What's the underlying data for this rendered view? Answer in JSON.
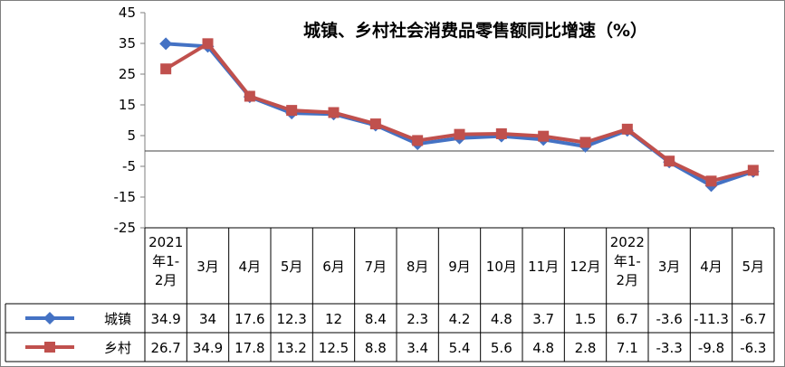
{
  "chart_data": {
    "type": "line",
    "title": "城镇、乡村社会消费品零售额同比增速（%）",
    "categories": [
      "2021年1-2月",
      "3月",
      "4月",
      "5月",
      "6月",
      "7月",
      "8月",
      "9月",
      "10月",
      "11月",
      "12月",
      "2022年1-2月",
      "3月",
      "4月",
      "5月"
    ],
    "series": [
      {
        "name": "城镇",
        "values": [
          34.9,
          34,
          17.6,
          12.3,
          12,
          8.4,
          2.3,
          4.2,
          4.8,
          3.7,
          1.5,
          6.7,
          -3.6,
          -11.3,
          -6.7
        ],
        "labels": [
          "34.9",
          "34",
          "17.6",
          "12.3",
          "12",
          "8.4",
          "2.3",
          "4.2",
          "4.8",
          "3.7",
          "1.5",
          "6.7",
          "-3.6",
          "-11.3",
          "-6.7"
        ],
        "color": "#4472C4",
        "marker": "diamond"
      },
      {
        "name": "乡村",
        "values": [
          26.7,
          34.9,
          17.8,
          13.2,
          12.5,
          8.8,
          3.4,
          5.4,
          5.6,
          4.8,
          2.8,
          7.1,
          -3.3,
          -9.8,
          -6.3
        ],
        "labels": [
          "26.7",
          "34.9",
          "17.8",
          "13.2",
          "12.5",
          "8.8",
          "3.4",
          "5.4",
          "5.6",
          "4.8",
          "2.8",
          "7.1",
          "-3.3",
          "-9.8",
          "-6.3"
        ],
        "color": "#C0504D",
        "marker": "square"
      }
    ],
    "ylim": [
      -25,
      45
    ],
    "yticks": [
      45,
      35,
      25,
      15,
      5,
      -5,
      -15,
      -25
    ],
    "ytick_labels": [
      "45",
      "35",
      "25",
      "15",
      "5",
      "-5",
      "-15",
      "-25"
    ],
    "xlabel": "",
    "ylabel": "",
    "grid": false,
    "zero_line": true,
    "legend": "data-table",
    "data_table": true
  }
}
